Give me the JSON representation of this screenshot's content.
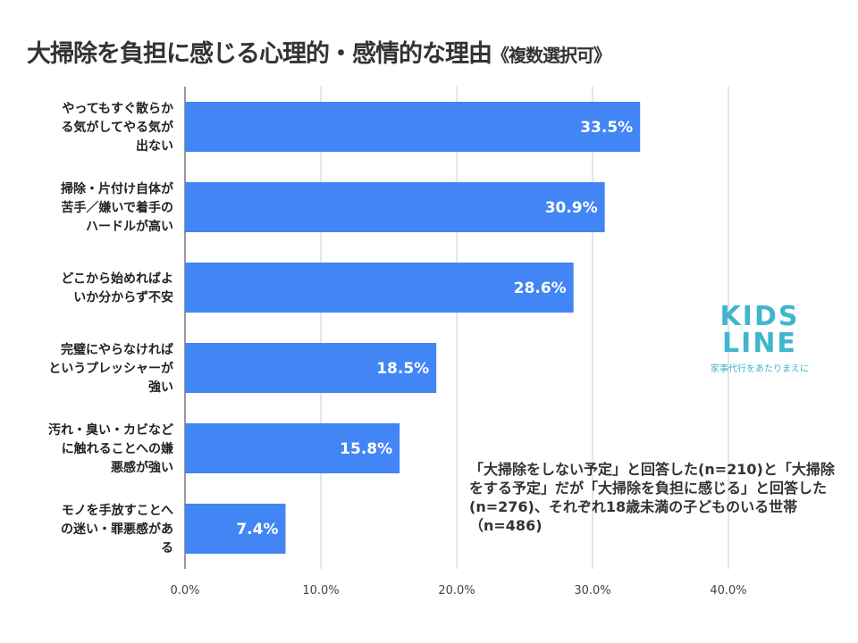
{
  "chart_data": {
    "type": "bar",
    "orientation": "horizontal",
    "title": "大掃除を負担に感じる心理的・感情的な理由",
    "subtitle": "《複数選択可》",
    "categories": [
      [
        "やってもすぐ散らか",
        "る気がしてやる気が",
        "出ない"
      ],
      [
        "掃除・片付け自体が",
        "苦手／嫌いで着手の",
        "ハードルが高い"
      ],
      [
        "どこから始めればよ",
        "いか分からず不安"
      ],
      [
        "完璧にやらなければ",
        "というプレッシャーが",
        "強い"
      ],
      [
        "汚れ・臭い・カビなど",
        "に触れることへの嫌",
        "悪感が強い"
      ],
      [
        "モノを手放すことへ",
        "の迷い・罪悪感があ",
        "る"
      ]
    ],
    "values": [
      33.5,
      30.9,
      28.6,
      18.5,
      15.8,
      7.4
    ],
    "data_labels": [
      "33.5%",
      "30.9%",
      "28.6%",
      "18.5%",
      "15.8%",
      "7.4%"
    ],
    "xlim": [
      0,
      40
    ],
    "ticks": [
      "0.0%",
      "10.0%",
      "20.0%",
      "30.0%",
      "40.0%"
    ],
    "grid": true,
    "bar_color": "#4285f4"
  },
  "note": "「大掃除をしない予定」と回答した(n=210)と「大掃除をする予定」だが「大掃除を負担に感じる」と回答した(n=276)、それぞれ18歳未満の子どものいる世帯（n=486)",
  "logo": {
    "text1": "KIDS",
    "text2": "LINE",
    "tagline": "家事代行をあたりまえに",
    "color": "#3fb6cc"
  }
}
